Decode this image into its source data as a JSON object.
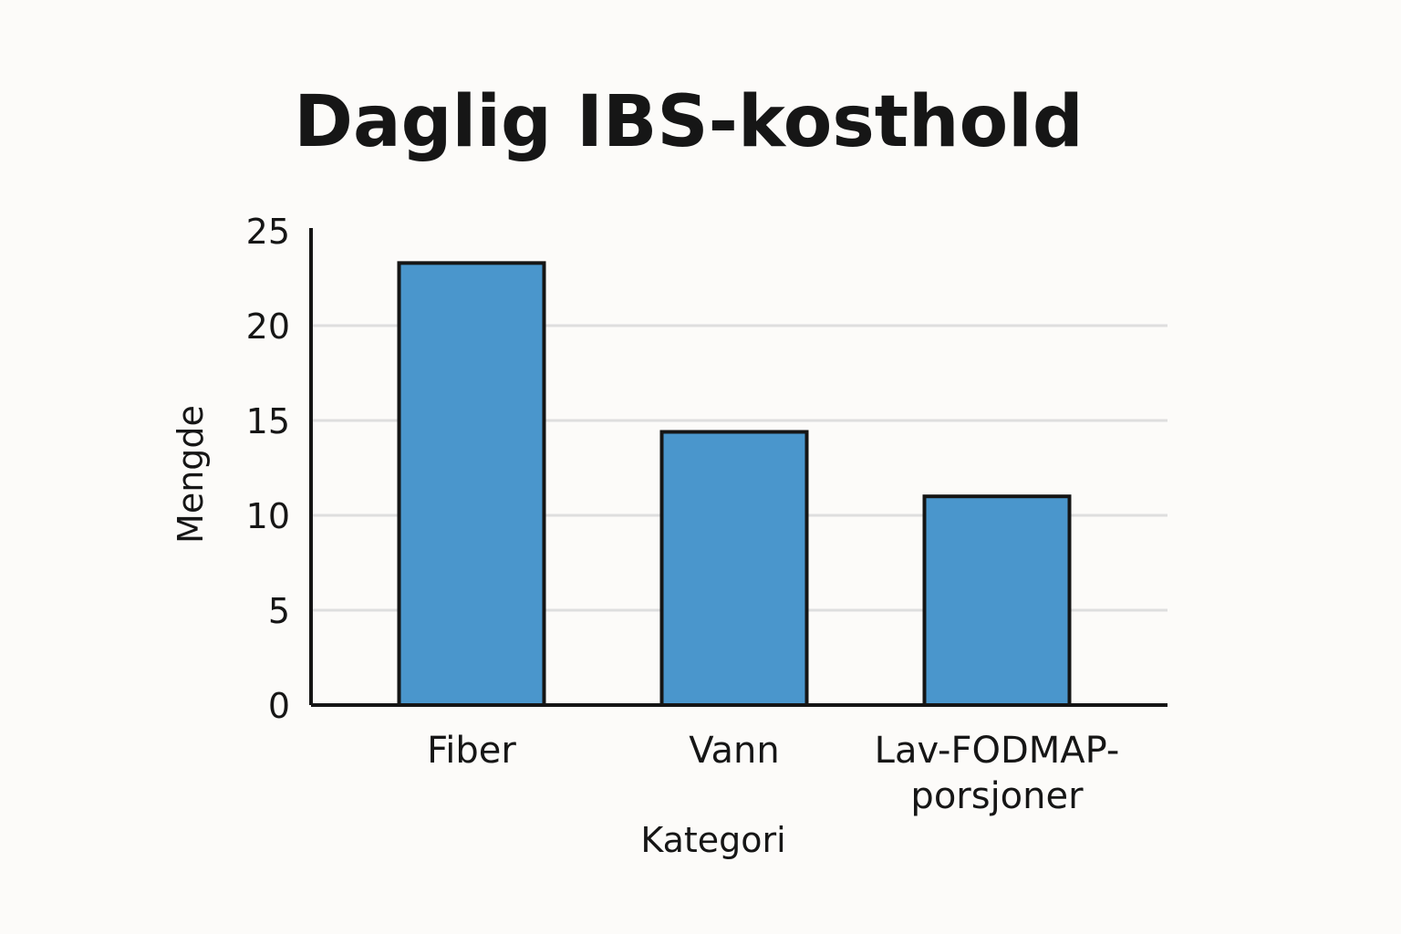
{
  "chart_data": {
    "type": "bar",
    "title": "Daglig IBS-kosthold",
    "xlabel": "Kategori",
    "ylabel": "Mengde",
    "categories": [
      "Fiber",
      "Vann",
      "Lav-FODMAP-porsjoner"
    ],
    "category_lines": [
      [
        "Fiber"
      ],
      [
        "Vann"
      ],
      [
        "Lav-FODMAP-",
        "porsjoner"
      ]
    ],
    "values": [
      23.3,
      14.4,
      11.0
    ],
    "ylim": [
      0,
      25
    ],
    "yticks": [
      "0",
      "5",
      "10",
      "15",
      "20",
      "25"
    ],
    "grid": true,
    "legend": "none",
    "colors": {
      "bar": "#4a96cc",
      "bar_stroke": "#151515",
      "axis": "#151515",
      "grid": "#dedede",
      "background": "#fcfbf9"
    }
  }
}
